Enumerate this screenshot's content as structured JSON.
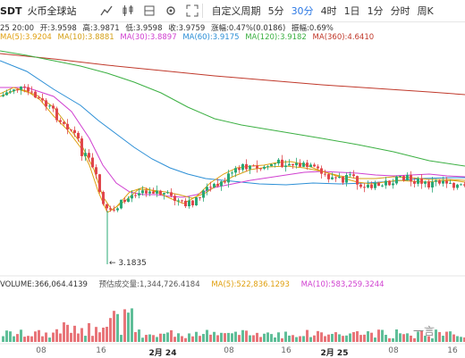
{
  "header": {
    "pair": "SDT",
    "exchange": "火币全球站",
    "periods": [
      "自定义周期",
      "5分",
      "30分",
      "4时",
      "1日",
      "1分",
      "分时",
      "周K"
    ],
    "active_period": "30分"
  },
  "ohlc": {
    "time": "25 20:00",
    "open_label": "开:",
    "open": "3.9598",
    "high_label": "高:",
    "high": "3.9871",
    "low_label": "低:",
    "low": "3.9598",
    "close_label": "收:",
    "close": "3.9759",
    "change_label": "涨幅:",
    "change": "0.47%(0.0186)",
    "amplitude_label": "振幅:",
    "amplitude": "0.69%"
  },
  "ma": [
    {
      "text": "MA(5):3.9204",
      "color": "#e0a010"
    },
    {
      "text": "MA(10):3.8881",
      "color": "#d4a017"
    },
    {
      "text": "MA(30):3.8897",
      "color": "#d040d0"
    },
    {
      "text": "MA(60):3.9175",
      "color": "#2c8fd6"
    },
    {
      "text": "MA(120):3.9182",
      "color": "#3cb043"
    },
    {
      "text": "MA(360):4.6410",
      "color": "#c0392b"
    }
  ],
  "volume": {
    "vol": "VOLUME:366,064.4139",
    "est": "预估成交量:1,344,726.4184",
    "ma5": "MA(5):522,836.1293",
    "ma10": "MA(10):583,259.3244"
  },
  "low_marker": "← 3.1835",
  "xaxis": [
    {
      "label": "08",
      "strong": false
    },
    {
      "label": "16",
      "strong": false
    },
    {
      "label": "2月 24",
      "strong": true
    },
    {
      "label": "08",
      "strong": false
    },
    {
      "label": "16",
      "strong": false
    },
    {
      "label": "2月 25",
      "strong": true
    },
    {
      "label": "08",
      "strong": false
    },
    {
      "label": "16",
      "strong": false
    }
  ],
  "watermark": "一言",
  "colors": {
    "up": "#2aa876",
    "down": "#e0474c",
    "accent": "#2b78e4"
  }
}
